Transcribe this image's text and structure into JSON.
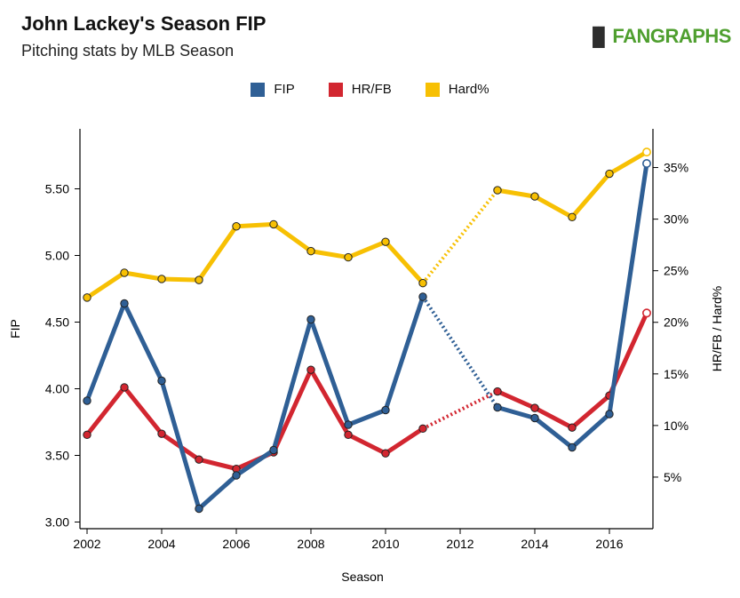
{
  "header": {
    "title": "John Lackey's Season FIP",
    "subtitle": "Pitching stats by MLB Season",
    "brand": "FANGRAPHS"
  },
  "chart_data": {
    "type": "line",
    "xlabel": "Season",
    "ylabel_left": "FIP",
    "ylabel_right": "HR/FB / Hard%",
    "xlim": [
      2002,
      2017
    ],
    "x_ticks": [
      "2002",
      "2004",
      "2006",
      "2008",
      "2010",
      "2012",
      "2014",
      "2016"
    ],
    "y_left_lim": [
      2.95,
      5.95
    ],
    "y_left_ticks": [
      "3.00",
      "3.50",
      "4.00",
      "4.50",
      "5.00",
      "5.50"
    ],
    "y_right_lim": [
      0.0,
      0.3875
    ],
    "y_right_ticks": [
      "5%",
      "10%",
      "15%",
      "20%",
      "25%",
      "30%",
      "35%"
    ],
    "legend_position": "top",
    "grid": false,
    "x": [
      2002,
      2003,
      2004,
      2005,
      2006,
      2007,
      2008,
      2009,
      2010,
      2011,
      2013,
      2014,
      2015,
      2016,
      2017
    ],
    "gap_between": [
      2011,
      2013
    ],
    "series": [
      {
        "name": "FIP",
        "axis": "left",
        "color": "#2f5f95",
        "values": [
          3.91,
          4.64,
          4.06,
          3.1,
          3.35,
          3.54,
          4.52,
          3.73,
          3.84,
          4.69,
          3.86,
          3.78,
          3.56,
          3.81,
          5.69
        ]
      },
      {
        "name": "HR/FB",
        "axis": "right",
        "color": "#d22630",
        "values": [
          0.091,
          0.137,
          0.092,
          0.067,
          0.058,
          0.074,
          0.154,
          0.091,
          0.073,
          0.097,
          0.133,
          0.117,
          0.098,
          0.129,
          0.209
        ]
      },
      {
        "name": "Hard%",
        "axis": "right",
        "color": "#f7c003",
        "values": [
          0.224,
          0.248,
          0.242,
          0.241,
          0.293,
          0.295,
          0.269,
          0.263,
          0.278,
          0.238,
          0.328,
          0.322,
          0.302,
          0.344,
          0.365
        ]
      }
    ]
  }
}
